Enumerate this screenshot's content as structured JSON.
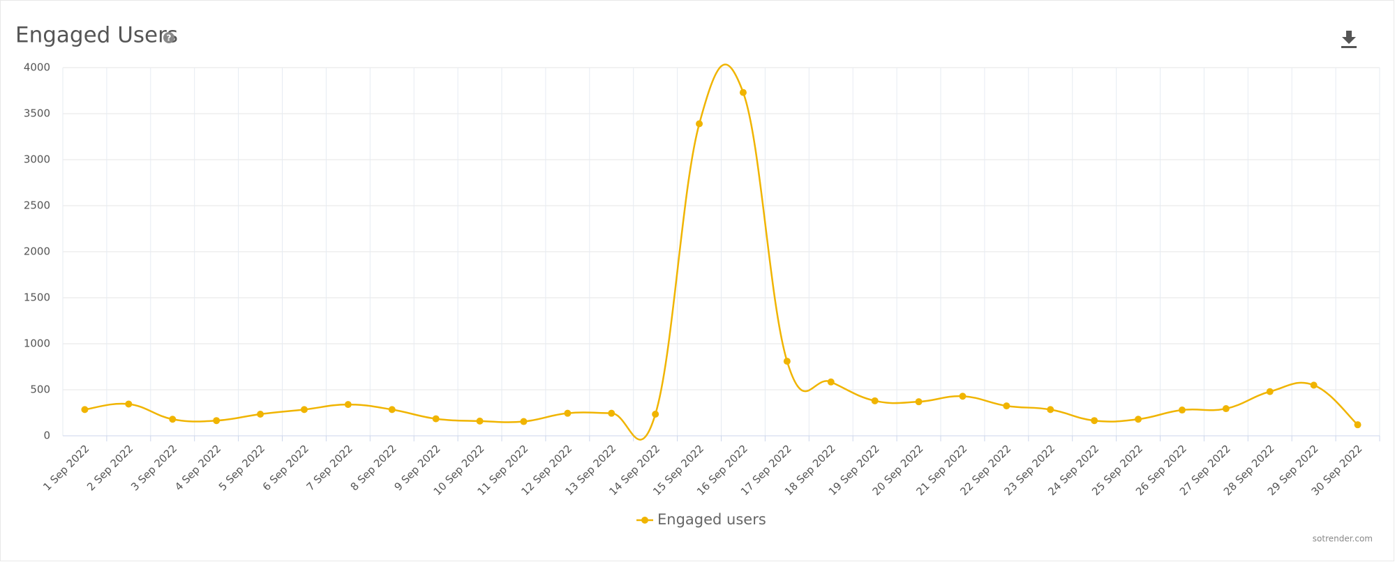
{
  "chart_data": {
    "type": "line",
    "title": "Engaged Users",
    "categories": [
      "1 Sep 2022",
      "2 Sep 2022",
      "3 Sep 2022",
      "4 Sep 2022",
      "5 Sep 2022",
      "6 Sep 2022",
      "7 Sep 2022",
      "8 Sep 2022",
      "9 Sep 2022",
      "10 Sep 2022",
      "11 Sep 2022",
      "12 Sep 2022",
      "13 Sep 2022",
      "14 Sep 2022",
      "15 Sep 2022",
      "16 Sep 2022",
      "17 Sep 2022",
      "18 Sep 2022",
      "19 Sep 2022",
      "20 Sep 2022",
      "21 Sep 2022",
      "22 Sep 2022",
      "23 Sep 2022",
      "24 Sep 2022",
      "25 Sep 2022",
      "26 Sep 2022",
      "27 Sep 2022",
      "28 Sep 2022",
      "29 Sep 2022",
      "30 Sep 2022"
    ],
    "series": [
      {
        "name": "Engaged users",
        "color": "#f0b400",
        "values": [
          285,
          345,
          180,
          165,
          235,
          285,
          340,
          285,
          185,
          160,
          155,
          245,
          245,
          235,
          3390,
          3730,
          810,
          585,
          380,
          370,
          430,
          325,
          285,
          165,
          180,
          280,
          295,
          480,
          550,
          120
        ]
      }
    ],
    "ylim": [
      0,
      4000
    ],
    "yticks": [
      0,
      500,
      1000,
      1500,
      2000,
      2500,
      3000,
      3500,
      4000
    ],
    "grid": true,
    "credits": "sotrender.com"
  }
}
